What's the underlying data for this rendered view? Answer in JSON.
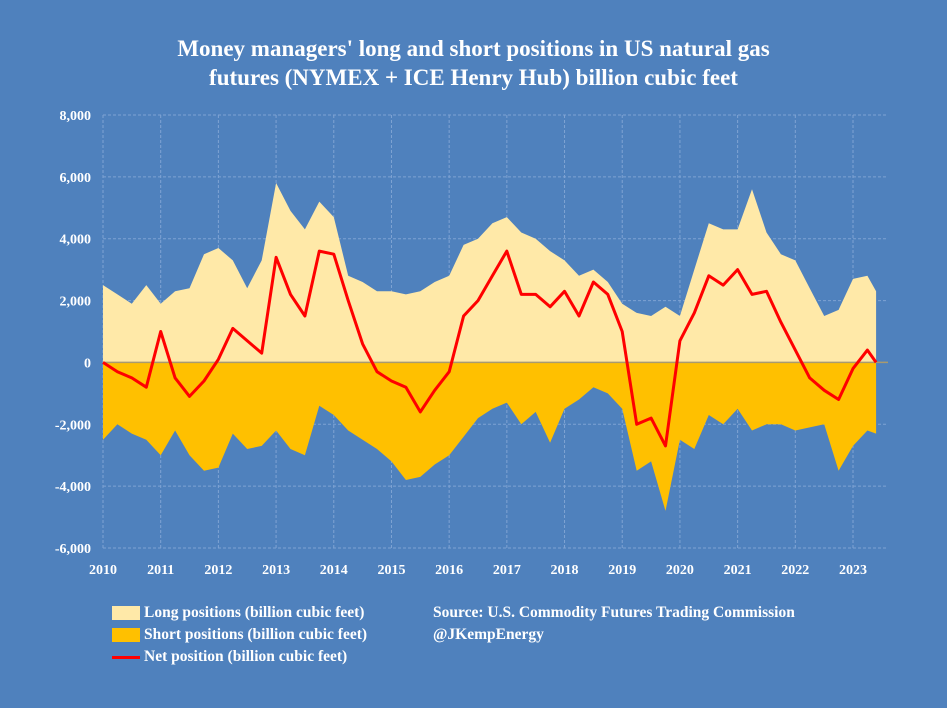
{
  "title_line1": "Money managers' long and short positions in US natural gas",
  "title_line2": "futures (NYMEX + ICE Henry Hub) billion cubic feet",
  "legend": {
    "long": "Long positions (billion cubic feet)",
    "short": "Short positions (billion cubic feet)",
    "net": "Net position (billion cubic feet)"
  },
  "source": "Source: U.S. Commodity Futures Trading Commission",
  "handle": "@JKempEnergy",
  "colors": {
    "background": "#4F81BD",
    "long": "#FFE9A8",
    "short": "#FFC000",
    "net": "#FF0000"
  },
  "chart_data": {
    "type": "area",
    "title": "Money managers' long and short positions in US natural gas futures (NYMEX + ICE Henry Hub) billion cubic feet",
    "xlabel": "",
    "ylabel": "",
    "xlim": [
      2010,
      2023.6
    ],
    "ylim": [
      -6000,
      8000
    ],
    "x_ticks": [
      "2010",
      "2011",
      "2012",
      "2013",
      "2014",
      "2015",
      "2016",
      "2017",
      "2018",
      "2019",
      "2020",
      "2021",
      "2022",
      "2023"
    ],
    "y_ticks": [
      "8,000",
      "6,000",
      "4,000",
      "2,000",
      "0",
      "-2,000",
      "-4,000",
      "-6,000"
    ],
    "y_tick_values": [
      8000,
      6000,
      4000,
      2000,
      0,
      -2000,
      -4000,
      -6000
    ],
    "grid": true,
    "legend_position": "bottom-left",
    "x": [
      2010,
      2010.25,
      2010.5,
      2010.75,
      2011,
      2011.25,
      2011.5,
      2011.75,
      2012,
      2012.25,
      2012.5,
      2012.75,
      2013,
      2013.25,
      2013.5,
      2013.75,
      2014,
      2014.25,
      2014.5,
      2014.75,
      2015,
      2015.25,
      2015.5,
      2015.75,
      2016,
      2016.25,
      2016.5,
      2016.75,
      2017,
      2017.25,
      2017.5,
      2017.75,
      2018,
      2018.25,
      2018.5,
      2018.75,
      2019,
      2019.25,
      2019.5,
      2019.75,
      2020,
      2020.25,
      2020.5,
      2020.75,
      2021,
      2021.25,
      2021.5,
      2021.75,
      2022,
      2022.25,
      2022.5,
      2022.75,
      2023,
      2023.25,
      2023.4
    ],
    "series": [
      {
        "name": "Long positions (billion cubic feet)",
        "values": [
          2500,
          2200,
          1900,
          2500,
          1900,
          2300,
          2400,
          3500,
          3700,
          3300,
          2400,
          3300,
          5800,
          4900,
          4300,
          5200,
          4700,
          2800,
          2600,
          2300,
          2300,
          2200,
          2300,
          2600,
          2800,
          3800,
          4000,
          4500,
          4700,
          4200,
          4000,
          3600,
          3300,
          2800,
          3000,
          2600,
          1900,
          1600,
          1500,
          1800,
          1500,
          3000,
          4500,
          4300,
          4300,
          5600,
          4200,
          3500,
          3300,
          2400,
          1500,
          1700,
          2700,
          2800,
          2300
        ]
      },
      {
        "name": "Short positions (billion cubic feet)",
        "values": [
          -2500,
          -2000,
          -2300,
          -2500,
          -3000,
          -2200,
          -3000,
          -3500,
          -3400,
          -2300,
          -2800,
          -2700,
          -2200,
          -2800,
          -3000,
          -1400,
          -1700,
          -2200,
          -2500,
          -2800,
          -3200,
          -3800,
          -3700,
          -3300,
          -3000,
          -2400,
          -1800,
          -1500,
          -1300,
          -2000,
          -1600,
          -2600,
          -1500,
          -1200,
          -800,
          -1000,
          -1500,
          -3500,
          -3200,
          -4800,
          -2500,
          -2800,
          -1700,
          -2000,
          -1500,
          -2200,
          -2000,
          -2000,
          -2200,
          -2100,
          -2000,
          -3500,
          -2700,
          -2200,
          -2300
        ]
      },
      {
        "name": "Net position (billion cubic feet)",
        "values": [
          0,
          -300,
          -500,
          -800,
          1000,
          -500,
          -1100,
          -600,
          100,
          1100,
          700,
          300,
          3400,
          2200,
          1500,
          3600,
          3500,
          2000,
          600,
          -300,
          -600,
          -800,
          -1600,
          -900,
          -300,
          1500,
          2000,
          2800,
          3600,
          2200,
          2200,
          1800,
          2300,
          1500,
          2600,
          2200,
          1000,
          -2000,
          -1800,
          -2700,
          700,
          1600,
          2800,
          2500,
          3000,
          2200,
          2300,
          1300,
          400,
          -500,
          -900,
          -1200,
          -200,
          400,
          0
        ]
      }
    ]
  }
}
